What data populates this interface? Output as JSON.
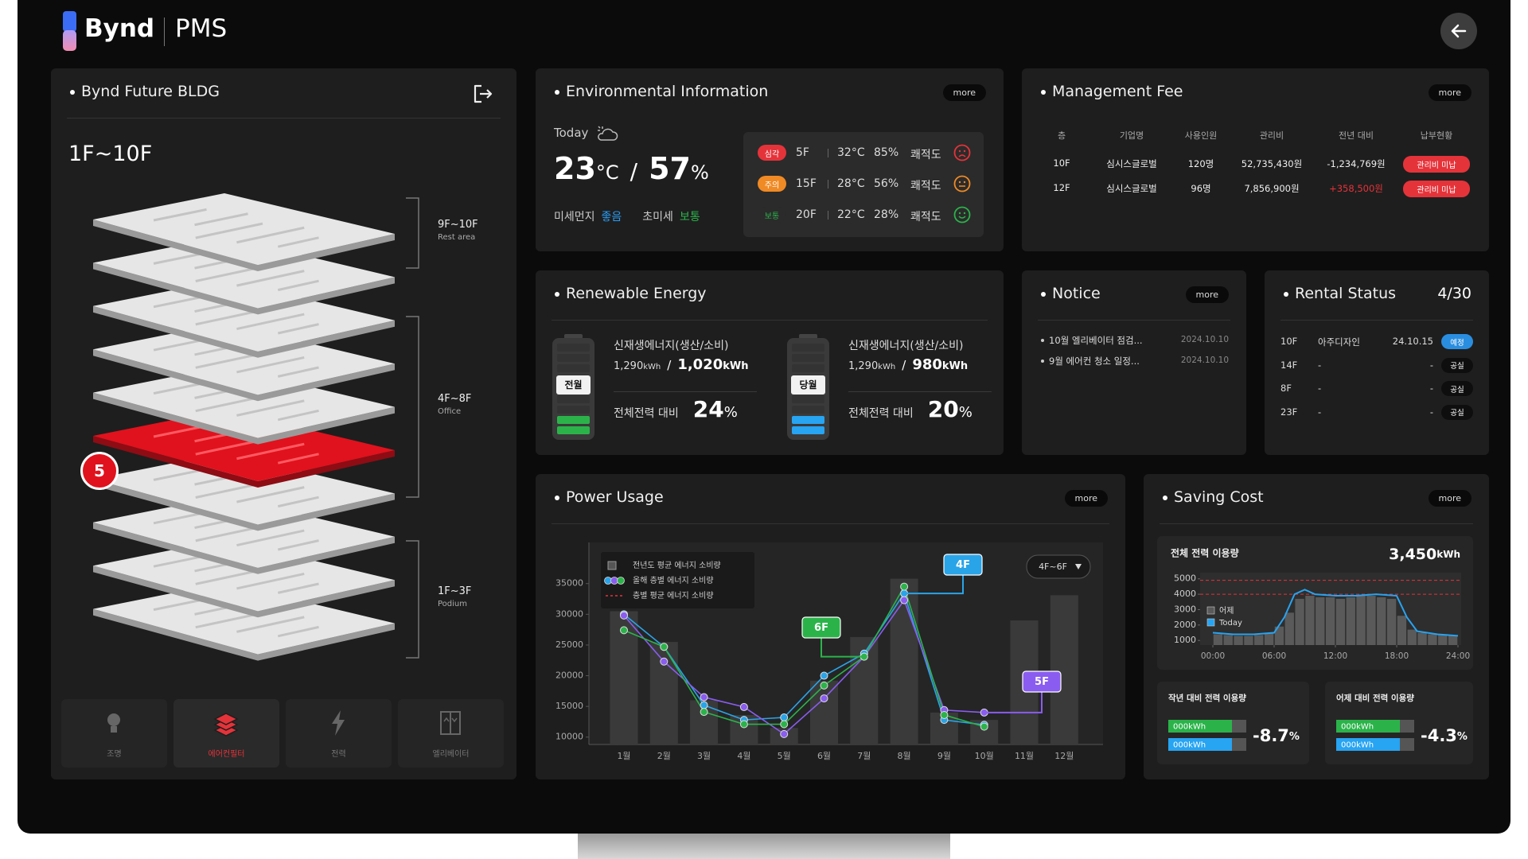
{
  "header": {
    "brand": "Bynd",
    "product": "PMS"
  },
  "building": {
    "title": "Bynd Future BLDG",
    "range": "1F~10F",
    "selected_floor": "5",
    "zones": [
      {
        "floors": "9F~10F",
        "use": "Rest area"
      },
      {
        "floors": "4F~8F",
        "use": "Office"
      },
      {
        "floors": "1F~3F",
        "use": "Podium"
      }
    ],
    "tabs": [
      "조명",
      "에어컨필터",
      "전력",
      "엘리베이터"
    ],
    "active_tab": 1
  },
  "environment": {
    "title": "Environmental Information",
    "more": "more",
    "today": "Today",
    "temperature": "23",
    "temperature_unit": "°C",
    "separator": "/",
    "humidity": "57",
    "humidity_unit": "%",
    "dust": [
      {
        "label": "미세먼지",
        "status": "좋음",
        "color": "#2a9df4"
      },
      {
        "label": "초미세",
        "status": "보통",
        "color": "#2bb34a"
      }
    ],
    "floors": [
      {
        "status": "심각",
        "fill": "#e5333a",
        "color": "#e5333a",
        "floor": "5F",
        "temperature": "32°C",
        "humidity": "85%",
        "comfort": "쾌적도"
      },
      {
        "status": "주의",
        "fill": "#f08a24",
        "color": "#f08a24",
        "floor": "15F",
        "temperature": "28°C",
        "humidity": "56%",
        "comfort": "쾌적도"
      },
      {
        "status": "보통",
        "fill": "#2b2b2b",
        "color": "#2bb34a",
        "floor": "20F",
        "temperature": "22°C",
        "humidity": "28%",
        "comfort": "쾌적도"
      }
    ]
  },
  "management": {
    "title": "Management Fee",
    "more": "more",
    "columns": [
      "층",
      "기업명",
      "사용인원",
      "관리비",
      "전년 대비",
      "납부현황"
    ],
    "rows": [
      [
        "10F",
        "심시스글로벌",
        "120명",
        "52,735,430원",
        "-1,234,769원",
        "관리비 미납"
      ],
      [
        "12F",
        "심시스글로벌",
        "96명",
        "7,856,900원",
        "+358,500원",
        "관리비 미납"
      ]
    ]
  },
  "renewable": {
    "title": "Renewable Energy",
    "separator": "/",
    "items": [
      {
        "period": "전월",
        "color": "#2bb34a",
        "label": "신재생에너지(생산/소비)",
        "production": "1,290",
        "consumption": "1,020",
        "unit": "kWh",
        "share_label": "전체전력 대비",
        "share": "24",
        "share_unit": "%"
      },
      {
        "period": "당월",
        "color": "#27a4f2",
        "label": "신재생에너지(생산/소비)",
        "production": "1,290",
        "consumption": "980",
        "unit": "kWh",
        "share_label": "전체전력 대비",
        "share": "20",
        "share_unit": "%"
      }
    ]
  },
  "notice": {
    "title": "Notice",
    "more": "more",
    "items": [
      {
        "text": "10월 엘리베이터 점검...",
        "date": "2024.10.10"
      },
      {
        "text": "9월 에어컨 청소 일정...",
        "date": "2024.10.10"
      }
    ]
  },
  "rental": {
    "title": "Rental Status",
    "count": "4/30",
    "rows": [
      {
        "floor": "10F",
        "tenant": "아주디자인",
        "date": "24.10.15",
        "status": "예정",
        "color": "#2a8ee0"
      },
      {
        "floor": "14F",
        "tenant": "-",
        "date": "-",
        "status": "공실",
        "color": "#0e0e0e"
      },
      {
        "floor": "8F",
        "tenant": "-",
        "date": "-",
        "status": "공실",
        "color": "#0e0e0e"
      },
      {
        "floor": "23F",
        "tenant": "-",
        "date": "-",
        "status": "공실",
        "color": "#0e0e0e"
      }
    ]
  },
  "power_usage": {
    "title": "Power Usage",
    "more": "more",
    "filter": "4F~6F",
    "legend": [
      "전년도 평균 에너지 소비량",
      "올해 층별 에너지 소비량",
      "층별 평균 에너지 소비량"
    ],
    "months": [
      "1월",
      "2월",
      "3월",
      "4월",
      "5월",
      "6월",
      "7월",
      "8월",
      "9월",
      "10월",
      "11월",
      "12월"
    ],
    "ylim": [
      8800,
      41700
    ],
    "yticks": [
      10000,
      15000,
      20000,
      25000,
      30000,
      35000
    ],
    "bars": {
      "color": "#3a3a3a",
      "values": [
        30500,
        25500,
        16000,
        13600,
        11500,
        19200,
        26300,
        35800,
        14000,
        12800,
        29000,
        33100
      ]
    },
    "series": [
      {
        "name": "4F",
        "color": "#2aa4e8",
        "values": [
          30000,
          24700,
          15200,
          12800,
          13200,
          20000,
          23600,
          33400,
          12800,
          12000,
          null,
          null
        ]
      },
      {
        "name": "5F",
        "color": "#8a5cf0",
        "values": [
          29800,
          22300,
          16500,
          14900,
          10500,
          16300,
          23100,
          32300,
          14400,
          14000,
          null,
          null
        ]
      },
      {
        "name": "6F",
        "color": "#2bb34a",
        "values": [
          27400,
          24700,
          14100,
          12100,
          12100,
          18400,
          23100,
          34500,
          13600,
          11700,
          null,
          null
        ]
      }
    ]
  },
  "saving_cost": {
    "title": "Saving Cost",
    "more": "more",
    "total_label": "전체 전력 이용량",
    "total": "3,450",
    "total_unit": "kWh",
    "chart": {
      "ylim": [
        700,
        5400
      ],
      "yticks": [
        1000,
        2000,
        3000,
        4000,
        5000
      ],
      "xlim": [
        0,
        24
      ],
      "xticks": [
        {
          "value": 0,
          "label": "00:00"
        },
        {
          "value": 6,
          "label": "06:00"
        },
        {
          "value": 12,
          "label": "12:00"
        },
        {
          "value": 18,
          "label": "18:00"
        },
        {
          "value": 24,
          "label": "24:00"
        }
      ],
      "limits": [
        4900,
        4000
      ],
      "series": [
        {
          "name": "어제",
          "color": "#5a5a5a",
          "x": [
            0.5,
            1.5,
            2.5,
            3.5,
            4.5,
            5.5,
            6.5,
            7.5,
            8.5,
            9.5,
            10.5,
            11.5,
            12.5,
            13.5,
            14.5,
            15.5,
            16.5,
            17.5,
            18.5,
            19.5,
            20.5,
            21.5,
            22.5,
            23.5
          ],
          "values": [
            1400,
            1350,
            1300,
            1300,
            1350,
            1500,
            1900,
            2800,
            3700,
            3900,
            3800,
            3800,
            3700,
            3800,
            3900,
            3900,
            3800,
            3700,
            2600,
            1700,
            1500,
            1400,
            1400,
            1300
          ]
        },
        {
          "name": "Today",
          "color": "#27a4f2",
          "x": [
            0,
            2,
            4,
            6,
            7,
            8,
            9,
            10,
            12,
            14,
            16,
            18,
            19,
            20,
            22,
            24
          ],
          "values": [
            1500,
            1400,
            1400,
            1500,
            2500,
            4000,
            4300,
            4000,
            3900,
            3900,
            4000,
            3900,
            2500,
            1600,
            1400,
            1300
          ]
        }
      ]
    },
    "comparisons": [
      {
        "title": "작년 대비 전력 이용량",
        "bars": [
          "000kWh",
          "000kWh"
        ],
        "value": "-8.7",
        "unit": "%"
      },
      {
        "title": "어제 대비 전력 이용량",
        "bars": [
          "000kWh",
          "000kWh"
        ],
        "value": "-4.3",
        "unit": "%"
      }
    ]
  }
}
